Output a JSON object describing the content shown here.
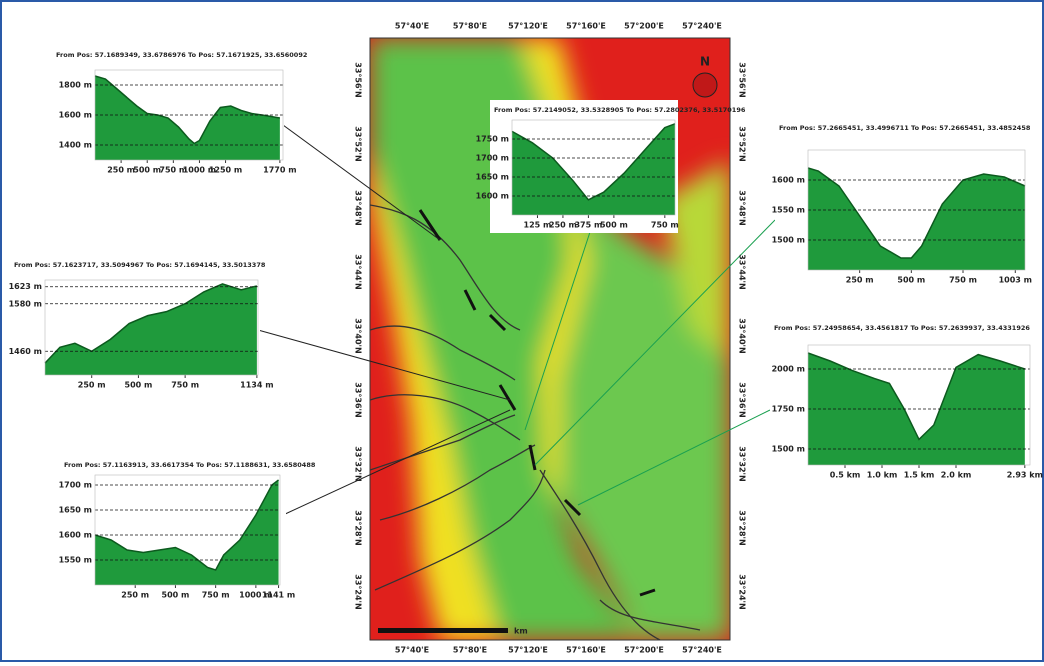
{
  "map": {
    "north_label": "N",
    "top_ticks": [
      "57°40'E",
      "57°80'E",
      "57°120'E",
      "57°160'E",
      "57°200'E",
      "57°240'E"
    ],
    "side_ticks": [
      "33°56'N",
      "33°52'N",
      "33°48'N",
      "33°44'N",
      "33°40'N",
      "33°36'N",
      "33°32'N",
      "33°28'N",
      "33°24'N"
    ],
    "scale_label": "km"
  },
  "profiles": [
    {
      "title": "From Pos: 57.1689349, 33.6786976 To Pos: 57.1671925, 33.6560092",
      "xlim": [
        0,
        1800
      ],
      "ylim": [
        1300,
        1900
      ],
      "xticks": [
        {
          "value": 250,
          "label": "250 m"
        },
        {
          "value": 500,
          "label": "500 m"
        },
        {
          "value": 750,
          "label": "750 m"
        },
        {
          "value": 1000,
          "label": "1000 m"
        },
        {
          "value": 1250,
          "label": "1250 m"
        },
        {
          "value": 1770,
          "label": "1770 m"
        }
      ],
      "yticks": [
        {
          "value": 1400,
          "label": "1400 m"
        },
        {
          "value": 1600,
          "label": "1600 m"
        },
        {
          "value": 1800,
          "label": "1800 m"
        }
      ],
      "x": [
        0,
        100,
        200,
        300,
        400,
        500,
        600,
        700,
        800,
        900,
        950,
        1000,
        1100,
        1200,
        1300,
        1400,
        1500,
        1600,
        1770
      ],
      "values": [
        1860,
        1840,
        1780,
        1720,
        1660,
        1610,
        1600,
        1580,
        1520,
        1440,
        1410,
        1430,
        1560,
        1650,
        1660,
        1630,
        1610,
        1600,
        1580
      ]
    },
    {
      "title": "From Pos: 57.2149052, 33.5328905 To Pos: 57.2802376, 33.5170196",
      "xlim": [
        0,
        800
      ],
      "ylim": [
        1550,
        1800
      ],
      "xticks": [
        {
          "value": 125,
          "label": "125 m"
        },
        {
          "value": 250,
          "label": "250 m"
        },
        {
          "value": 375,
          "label": "375 m"
        },
        {
          "value": 500,
          "label": "500 m"
        },
        {
          "value": 750,
          "label": "750 m"
        }
      ],
      "yticks": [
        {
          "value": 1600,
          "label": "1600 m"
        },
        {
          "value": 1650,
          "label": "1650 m"
        },
        {
          "value": 1700,
          "label": "1700 m"
        },
        {
          "value": 1750,
          "label": "1750 m"
        }
      ],
      "x": [
        0,
        100,
        200,
        300,
        375,
        450,
        550,
        650,
        750,
        800
      ],
      "values": [
        1770,
        1740,
        1700,
        1640,
        1590,
        1610,
        1660,
        1720,
        1780,
        1790
      ]
    },
    {
      "title": "From Pos: 57.2665451, 33.4996711 To Pos: 57.2665451, 33.4852458",
      "xlim": [
        0,
        1050
      ],
      "ylim": [
        1450,
        1650
      ],
      "xticks": [
        {
          "value": 250,
          "label": "250 m"
        },
        {
          "value": 500,
          "label": "500 m"
        },
        {
          "value": 750,
          "label": "750 m"
        },
        {
          "value": 1003,
          "label": "1003 m"
        }
      ],
      "yticks": [
        {
          "value": 1500,
          "label": "1500 m"
        },
        {
          "value": 1550,
          "label": "1550 m"
        },
        {
          "value": 1600,
          "label": "1600 m"
        }
      ],
      "x": [
        0,
        50,
        150,
        250,
        350,
        450,
        500,
        550,
        650,
        750,
        850,
        950,
        1050
      ],
      "values": [
        1620,
        1615,
        1590,
        1540,
        1490,
        1470,
        1470,
        1490,
        1560,
        1600,
        1610,
        1605,
        1590
      ]
    },
    {
      "title": "From Pos: 57.1623717, 33.5094967 To Pos: 57.1694145, 33.5013378",
      "xlim": [
        0,
        1140
      ],
      "ylim": [
        1400,
        1640
      ],
      "xticks": [
        {
          "value": 250,
          "label": "250 m"
        },
        {
          "value": 500,
          "label": "500 m"
        },
        {
          "value": 750,
          "label": "750 m"
        },
        {
          "value": 1134,
          "label": "1134 m"
        }
      ],
      "yticks": [
        {
          "value": 1460,
          "label": "1460 m"
        },
        {
          "value": 1580,
          "label": "1580 m"
        },
        {
          "value": 1623,
          "label": "1623 m"
        }
      ],
      "x": [
        0,
        80,
        160,
        250,
        350,
        450,
        550,
        650,
        750,
        850,
        950,
        1050,
        1134
      ],
      "values": [
        1430,
        1470,
        1480,
        1460,
        1490,
        1530,
        1550,
        1560,
        1580,
        1610,
        1630,
        1615,
        1625
      ]
    },
    {
      "title": "From Pos: 57.24958654, 33.4561817 To Pos: 57.2639937, 33.4331926",
      "xlim": [
        0,
        3
      ],
      "ylim": [
        1400,
        2150
      ],
      "xticks": [
        {
          "value": 0.5,
          "label": "0.5 km"
        },
        {
          "value": 1,
          "label": "1.0 km"
        },
        {
          "value": 1.5,
          "label": "1.5 km"
        },
        {
          "value": 2,
          "label": "2.0 km"
        },
        {
          "value": 2.93,
          "label": "2.93 km"
        }
      ],
      "yticks": [
        {
          "value": 1500,
          "label": "1500 m"
        },
        {
          "value": 1750,
          "label": "1750 m"
        },
        {
          "value": 2000,
          "label": "2000 m"
        }
      ],
      "x": [
        0,
        0.3,
        0.6,
        0.9,
        1.1,
        1.3,
        1.5,
        1.7,
        2.0,
        2.3,
        2.6,
        2.93
      ],
      "values": [
        2100,
        2050,
        1990,
        1940,
        1910,
        1750,
        1560,
        1650,
        2010,
        2090,
        2050,
        2000
      ]
    },
    {
      "title": "From Pos: 57.1163913, 33.6617354 To Pos: 57.1188631, 33.6580488",
      "xlim": [
        0,
        1150
      ],
      "ylim": [
        1500,
        1720
      ],
      "xticks": [
        {
          "value": 250,
          "label": "250 m"
        },
        {
          "value": 500,
          "label": "500 m"
        },
        {
          "value": 750,
          "label": "750 m"
        },
        {
          "value": 1000,
          "label": "1000 m"
        },
        {
          "value": 1141,
          "label": "1141 m"
        }
      ],
      "yticks": [
        {
          "value": 1550,
          "label": "1550 m"
        },
        {
          "value": 1600,
          "label": "1600 m"
        },
        {
          "value": 1650,
          "label": "1650 m"
        },
        {
          "value": 1700,
          "label": "1700 m"
        }
      ],
      "x": [
        0,
        100,
        200,
        300,
        400,
        500,
        600,
        700,
        750,
        800,
        900,
        1000,
        1100,
        1141
      ],
      "values": [
        1600,
        1590,
        1570,
        1565,
        1570,
        1575,
        1560,
        1535,
        1530,
        1560,
        1590,
        1640,
        1700,
        1710
      ]
    }
  ]
}
